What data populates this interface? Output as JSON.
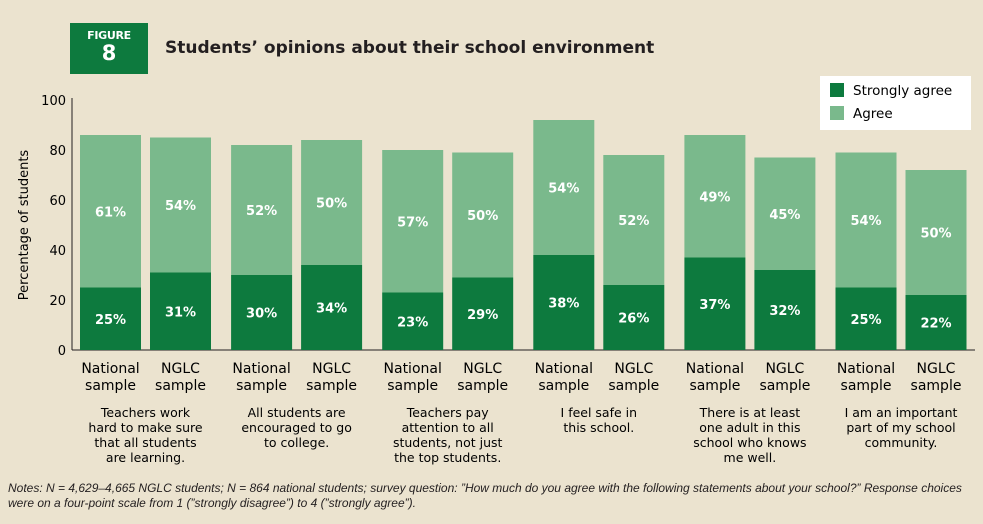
{
  "figure": {
    "label": "FIGURE",
    "number": "8"
  },
  "title": "Students’ opinions about their school environment",
  "notes": "Notes: N = 4,629–4,665 NGLC students; N = 864 national students; survey question: ”How much do you agree with the following statements about your school?” Response choices were on a four-point scale from 1 (”strongly disagree”) to 4 (”strongly agree”).",
  "colors": {
    "strongly_agree": "#0d7a3e",
    "agree": "#7ab98c",
    "background": "#ebe3cf"
  },
  "chart_data": {
    "type": "bar",
    "stacked": true,
    "title": "Students’ opinions about their school environment",
    "ylabel": "Percentage of students",
    "ylim": [
      0,
      100
    ],
    "yticks": [
      0,
      20,
      40,
      60,
      80,
      100
    ],
    "grid": false,
    "legend_position": "top-right",
    "groups": [
      {
        "label": [
          "Teachers work",
          "hard to make sure",
          "that all students",
          "are learning."
        ]
      },
      {
        "label": [
          "All students are",
          "encouraged to go",
          "to college."
        ]
      },
      {
        "label": [
          "Teachers pay",
          "attention to all",
          "students, not just",
          "the top students."
        ]
      },
      {
        "label": [
          "I feel safe in",
          "this school."
        ]
      },
      {
        "label": [
          "There is at least",
          "one adult in this",
          "school who knows",
          "me well."
        ]
      },
      {
        "label": [
          "I am an important",
          "part of my school",
          "community."
        ]
      }
    ],
    "bar_labels": [
      [
        "National",
        "sample"
      ],
      [
        "NGLC",
        "sample"
      ]
    ],
    "series": [
      {
        "name": "Strongly agree",
        "values": [
          [
            25,
            31
          ],
          [
            30,
            34
          ],
          [
            23,
            29
          ],
          [
            38,
            26
          ],
          [
            37,
            32
          ],
          [
            25,
            22
          ]
        ]
      },
      {
        "name": "Agree",
        "values": [
          [
            61,
            54
          ],
          [
            52,
            50
          ],
          [
            57,
            50
          ],
          [
            54,
            52
          ],
          [
            49,
            45
          ],
          [
            54,
            50
          ]
        ]
      }
    ],
    "value_suffix": "%"
  }
}
